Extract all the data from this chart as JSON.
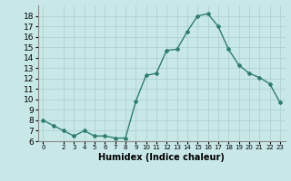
{
  "x": [
    0,
    1,
    2,
    3,
    4,
    5,
    6,
    7,
    8,
    9,
    10,
    11,
    12,
    13,
    14,
    15,
    16,
    17,
    18,
    19,
    20,
    21,
    22,
    23
  ],
  "y": [
    8.0,
    7.5,
    7.0,
    6.5,
    7.0,
    6.5,
    6.5,
    6.3,
    6.3,
    9.8,
    12.3,
    12.5,
    14.7,
    14.8,
    16.5,
    18.0,
    18.2,
    17.0,
    14.8,
    13.3,
    12.5,
    12.1,
    11.5,
    9.7
  ],
  "xlabel": "Humidex (Indice chaleur)",
  "ylim": [
    6,
    19
  ],
  "xlim": [
    -0.5,
    23.5
  ],
  "yticks": [
    6,
    7,
    8,
    9,
    10,
    11,
    12,
    13,
    14,
    15,
    16,
    17,
    18
  ],
  "xticks": [
    0,
    2,
    3,
    4,
    5,
    6,
    7,
    8,
    9,
    10,
    11,
    12,
    13,
    14,
    15,
    16,
    17,
    18,
    19,
    20,
    21,
    22,
    23
  ],
  "line_color": "#2e7d6e",
  "marker": "D",
  "marker_size": 2.0,
  "bg_color": "#c8e8e8",
  "grid_color": "#aacccc",
  "line_width": 1.0,
  "xlabel_fontsize": 7,
  "tick_fontsize_x": 5.0,
  "tick_fontsize_y": 6.5
}
